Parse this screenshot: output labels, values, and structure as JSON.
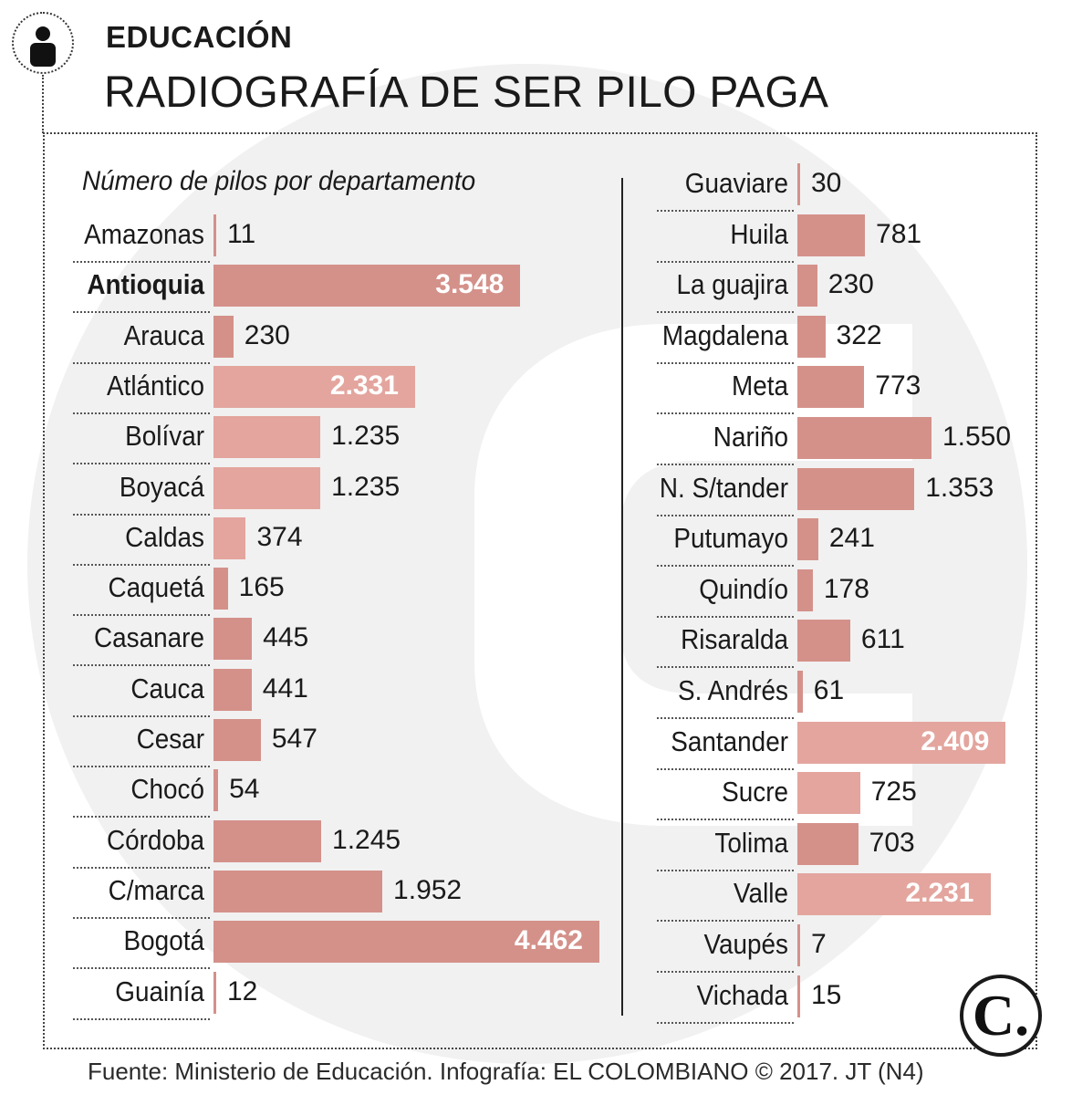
{
  "header": {
    "section": "EDUCACIÓN",
    "title": "RADIOGRAFÍA DE SER PILO PAGA",
    "person_icon": "person-icon"
  },
  "colors": {
    "bar": "#d4918a",
    "bar_light": "#e3a59e",
    "text": "#1a1a1a"
  },
  "chart_data": {
    "type": "bar",
    "orientation": "horizontal",
    "title": "Número de pilos por departamento",
    "xlabel": "",
    "ylabel": "",
    "xlim": [
      0,
      4462
    ],
    "grid": false,
    "columns": [
      {
        "categories": [
          "Amazonas",
          "Antioquia",
          "Arauca",
          "Atlántico",
          "Bolívar",
          "Boyacá",
          "Caldas",
          "Caquetá",
          "Casanare",
          "Cauca",
          "Cesar",
          "Chocó",
          "Córdoba",
          "C/marca",
          "Bogotá",
          "Guainía"
        ],
        "values": [
          11,
          3548,
          230,
          2331,
          1235,
          1235,
          374,
          165,
          445,
          441,
          547,
          54,
          1245,
          1952,
          4462,
          12
        ],
        "labels": [
          "11",
          "3.548",
          "230",
          "2.331",
          "1.235",
          "1.235",
          "374",
          "165",
          "445",
          "441",
          "547",
          "54",
          "1.245",
          "1.952",
          "4.462",
          "12"
        ]
      },
      {
        "categories": [
          "Guaviare",
          "Huila",
          "La guajira",
          "Magdalena",
          "Meta",
          "Nariño",
          "N. S/tander",
          "Putumayo",
          "Quindío",
          "Risaralda",
          "S. Andrés",
          "Santander",
          "Sucre",
          "Tolima",
          "Valle",
          "Vaupés",
          "Vichada"
        ],
        "values": [
          30,
          781,
          230,
          322,
          773,
          1550,
          1353,
          241,
          178,
          611,
          61,
          2409,
          725,
          703,
          2231,
          7,
          15
        ],
        "labels": [
          "30",
          "781",
          "230",
          "322",
          "773",
          "1.550",
          "1.353",
          "241",
          "178",
          "611",
          "61",
          "2.409",
          "725",
          "703",
          "2.231",
          "7",
          "15"
        ]
      }
    ]
  },
  "footer": {
    "source": "Fuente: Ministerio de Educación.  Infografía: EL COLOMBIANO © 2017. JT (N4)",
    "logo_letter": "C."
  }
}
